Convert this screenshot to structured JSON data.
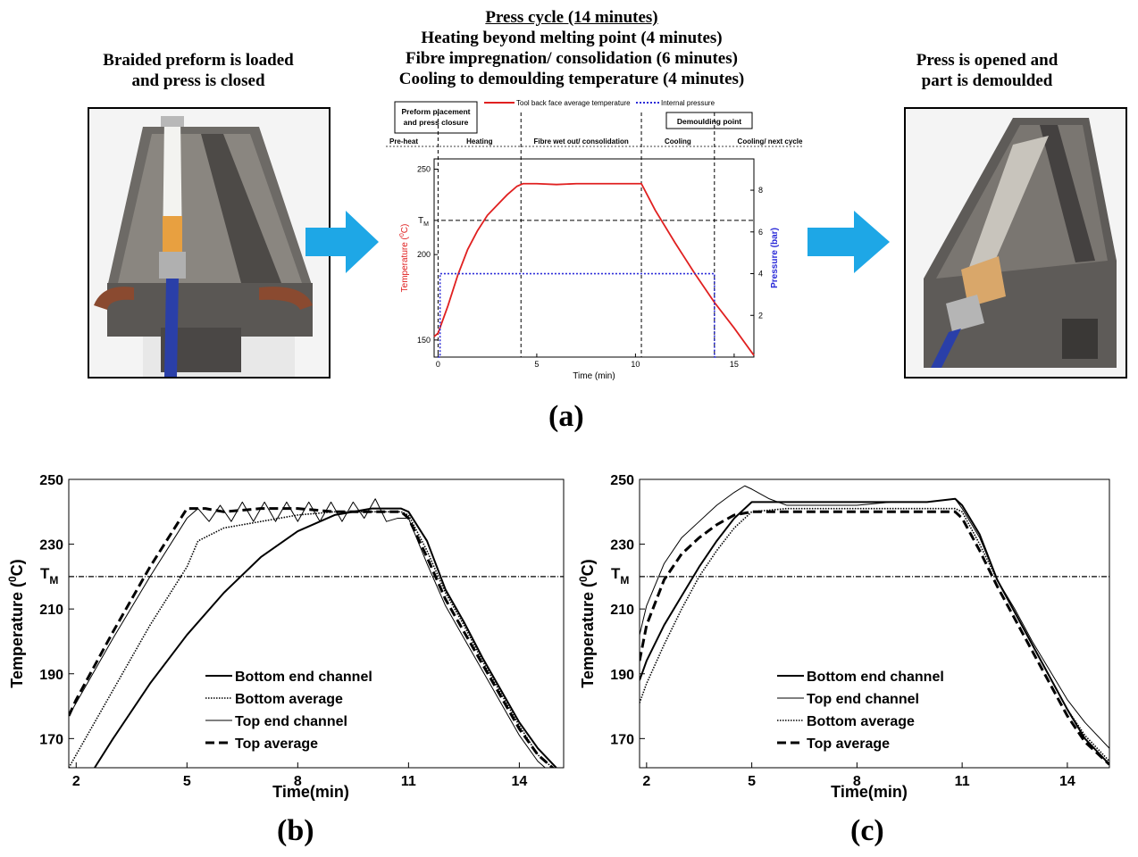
{
  "top": {
    "left_caption": [
      "Braided preform is loaded",
      "and press is closed"
    ],
    "right_caption": [
      "Press is opened and",
      "part is demoulded"
    ],
    "center_title": "Press cycle (14 minutes)",
    "center_lines": [
      "Heating beyond melting point (4 minutes)",
      "Fibre impregnation/ consolidation (6 minutes)",
      "Cooling to demoulding temperature (4 minutes)"
    ],
    "label": "(a)"
  },
  "colors": {
    "arrow": "#1ea7e6",
    "temp": "#e02020",
    "pressure": "#2a2ad8"
  },
  "chart_data": [
    {
      "id": "a",
      "type": "line",
      "title": "",
      "xlabel": "Time (min)",
      "ylabel": "Temperature (⁰C)",
      "ylabel_main": "Temperature (",
      "ylabel_sup": "0",
      "ylabel_end": "C)",
      "y2label": "Pressure (bar)",
      "xlim": [
        -0.2,
        16
      ],
      "ylim": [
        140,
        256
      ],
      "y2lim": [
        0,
        9.5
      ],
      "xticks": [
        0,
        5,
        10,
        15
      ],
      "yticks": [
        150,
        200,
        250
      ],
      "y2ticks": [
        2,
        4,
        6,
        8
      ],
      "legend": [
        "Tool back face average temperature",
        "Internal pressure"
      ],
      "legend_position": "top",
      "tm_label": "T",
      "tm_sub": "M",
      "tm_value": 220,
      "vlines": [
        0,
        4.2,
        10.3,
        14
      ],
      "phases": [
        "Pre-heat",
        "Heating",
        "Fibre wet out/ consolidation",
        "Cooling",
        "Cooling/ next cycle"
      ],
      "boxes": [
        [
          "Preform placement",
          "and press closure"
        ],
        [
          "Demoulding point"
        ]
      ],
      "series": [
        {
          "name": "Tool back face average temperature",
          "x": [
            -0.2,
            0,
            0.5,
            1,
            1.5,
            2,
            2.5,
            3,
            3.5,
            4,
            4.3,
            5,
            6,
            7,
            8,
            9,
            10.3,
            11,
            12,
            13,
            14,
            15,
            16
          ],
          "y": [
            152,
            154,
            170,
            188,
            203,
            214,
            223,
            229,
            235,
            240,
            241.5,
            241.5,
            241,
            241.5,
            241.5,
            241.5,
            241.5,
            226,
            207,
            189,
            172,
            157,
            141
          ]
        },
        {
          "name": "Internal pressure",
          "x": [
            0,
            0.1,
            0.1,
            14,
            14,
            14.1
          ],
          "y": [
            0,
            0,
            4,
            4,
            0,
            0
          ]
        }
      ]
    },
    {
      "id": "b",
      "type": "line",
      "title": "",
      "xlabel": "Time(min)",
      "ylabel": "Temperature (⁰C)",
      "ylabel_main": "Temperature (",
      "ylabel_sup": "0",
      "ylabel_end": "C)",
      "xlim": [
        1.8,
        15.2
      ],
      "ylim": [
        161,
        250
      ],
      "xticks": [
        2,
        5,
        8,
        11,
        14
      ],
      "yticks": [
        170,
        190,
        210,
        230,
        250
      ],
      "tm_label": "T",
      "tm_sub": "M",
      "tm_value": 220,
      "legend_position": "lower-center",
      "label": "(b)",
      "series": [
        {
          "name": "Bottom end channel",
          "style": "solid-thick",
          "x": [
            2.5,
            3,
            4,
            5,
            6,
            7,
            8,
            9,
            10,
            10.8,
            11,
            11.5,
            12,
            12.5,
            13,
            13.5,
            14,
            14.5,
            15
          ],
          "y": [
            161,
            170,
            187,
            202,
            215,
            226,
            234,
            239,
            241,
            241,
            240,
            231,
            216,
            206,
            195,
            185,
            175,
            167,
            161
          ]
        },
        {
          "name": "Bottom average",
          "style": "dotted",
          "x": [
            1.8,
            2,
            3,
            4,
            5,
            5.3,
            6,
            7,
            8,
            9,
            10,
            10.8,
            11,
            11.5,
            12,
            12.5,
            13,
            13.5,
            14,
            14.5,
            15
          ],
          "y": [
            161,
            165,
            185,
            205,
            223,
            231,
            235,
            237,
            239,
            240,
            240,
            240,
            239,
            228,
            215,
            205,
            194,
            184,
            174,
            165,
            160
          ]
        },
        {
          "name": "Top end channel",
          "style": "solid-thin",
          "x": [
            1.8,
            2,
            3,
            4,
            5,
            5.3,
            5.6,
            5.9,
            6.2,
            6.5,
            6.8,
            7.1,
            7.4,
            7.7,
            8,
            8.3,
            8.6,
            8.9,
            9.2,
            9.5,
            9.8,
            10.1,
            10.4,
            10.7,
            11,
            11.5,
            12,
            12.5,
            13,
            13.5,
            14,
            14.5,
            15
          ],
          "y": [
            177,
            181,
            201,
            220,
            238,
            241,
            237,
            242,
            237,
            243,
            237,
            243,
            237,
            243,
            237,
            243,
            237,
            243,
            237,
            243,
            238,
            244,
            237,
            238,
            238,
            224,
            211,
            201,
            191,
            181,
            171,
            163,
            158
          ]
        },
        {
          "name": "Top average",
          "style": "dashed-thick",
          "x": [
            1.8,
            2,
            3,
            4,
            5,
            5.5,
            6,
            7,
            8,
            9,
            10,
            10.8,
            11,
            11.5,
            12,
            12.5,
            13,
            13.5,
            14,
            14.5,
            15
          ],
          "y": [
            177,
            182,
            203,
            223,
            241,
            241,
            240,
            241,
            241,
            240,
            240,
            240,
            238,
            226,
            213,
            203,
            193,
            183,
            173,
            165,
            160
          ]
        }
      ]
    },
    {
      "id": "c",
      "type": "line",
      "title": "",
      "xlabel": "Time(min)",
      "ylabel": "Temperature (⁰C)",
      "ylabel_main": "Temperature (",
      "ylabel_sup": "0",
      "ylabel_end": "C)",
      "xlim": [
        1.8,
        15.2
      ],
      "ylim": [
        161,
        250
      ],
      "xticks": [
        2,
        5,
        8,
        11,
        14
      ],
      "yticks": [
        170,
        190,
        210,
        230,
        250
      ],
      "tm_label": "T",
      "tm_sub": "M",
      "tm_value": 220,
      "legend_position": "lower-center",
      "label": "(c)",
      "series": [
        {
          "name": "Bottom end channel",
          "style": "solid-thick",
          "x": [
            1.8,
            2,
            2.5,
            3,
            3.5,
            4,
            4.5,
            5,
            6,
            7,
            8,
            9,
            10,
            10.8,
            11,
            11.5,
            12,
            12.5,
            13,
            13.5,
            14,
            14.5,
            15.2
          ],
          "y": [
            188,
            194,
            205,
            214,
            223,
            231,
            238,
            243,
            243,
            243,
            243,
            243,
            243,
            244,
            242,
            233,
            219,
            209,
            199,
            189,
            179,
            170,
            162
          ]
        },
        {
          "name": "Top end channel",
          "style": "solid-thin",
          "x": [
            1.8,
            2,
            2.5,
            3,
            3.5,
            4,
            4.5,
            4.8,
            5,
            5.5,
            6,
            6.5,
            7,
            8,
            9,
            10,
            10.8,
            11,
            11.5,
            12,
            12.5,
            13,
            13.5,
            14,
            14.5,
            15.2
          ],
          "y": [
            202,
            211,
            224,
            232,
            237,
            242,
            246,
            248,
            247,
            244,
            242,
            242,
            242,
            242,
            243,
            243,
            244,
            241,
            232,
            219,
            210,
            200,
            191,
            182,
            175,
            167
          ]
        },
        {
          "name": "Bottom average",
          "style": "dotted",
          "x": [
            1.8,
            2,
            2.5,
            3,
            3.5,
            4,
            4.5,
            5,
            6,
            7,
            8,
            9,
            10,
            10.8,
            11,
            11.5,
            12,
            12.5,
            13,
            13.5,
            14,
            14.5,
            15.2
          ],
          "y": [
            181,
            187,
            199,
            210,
            220,
            228,
            235,
            240,
            241,
            241,
            241,
            241,
            241,
            241,
            240,
            230,
            219,
            209,
            199,
            189,
            179,
            171,
            163
          ]
        },
        {
          "name": "Top average",
          "style": "dashed-thick",
          "x": [
            1.8,
            2,
            2.5,
            3,
            3.5,
            4,
            4.5,
            5,
            6,
            7,
            8,
            9,
            10,
            10.8,
            11,
            11.5,
            12,
            12.5,
            13,
            13.5,
            14,
            14.5,
            15.2
          ],
          "y": [
            194,
            205,
            219,
            227,
            232,
            236,
            239,
            240,
            240,
            240,
            240,
            240,
            240,
            240,
            238,
            228,
            217,
            207,
            197,
            187,
            177,
            169,
            162
          ]
        }
      ]
    }
  ]
}
